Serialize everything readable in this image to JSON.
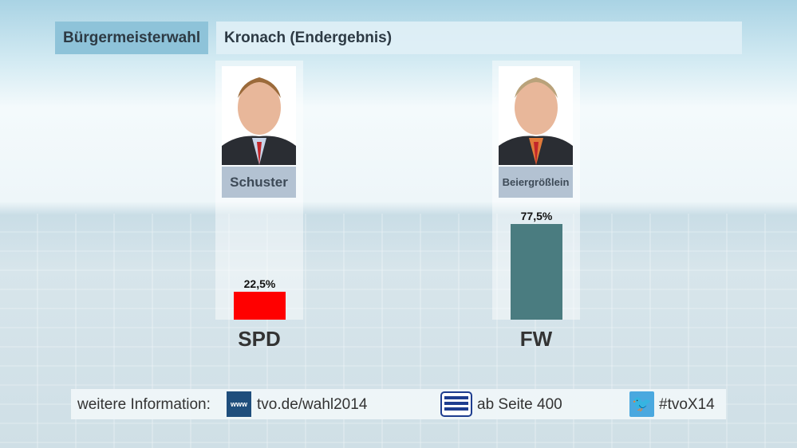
{
  "header": {
    "category": "Bürgermeisterwahl",
    "title": "Kronach (Endergebnis)"
  },
  "chart_data": {
    "type": "bar",
    "title": "Kronach (Endergebnis)",
    "categories": [
      "SPD",
      "FW"
    ],
    "candidates": [
      "Schuster",
      "Beiergrößlein"
    ],
    "values": [
      22.5,
      77.5
    ],
    "value_labels": [
      "22,5%",
      "77,5%"
    ],
    "colors": [
      "#ff0000",
      "#4a7c80"
    ],
    "ylim": [
      0,
      100
    ]
  },
  "footer": {
    "label": "weitere Information:",
    "www_icon": "www",
    "website": "tvo.de/wahl2014",
    "teletext": "ab Seite 400",
    "hashtag": "#tvoX14"
  }
}
